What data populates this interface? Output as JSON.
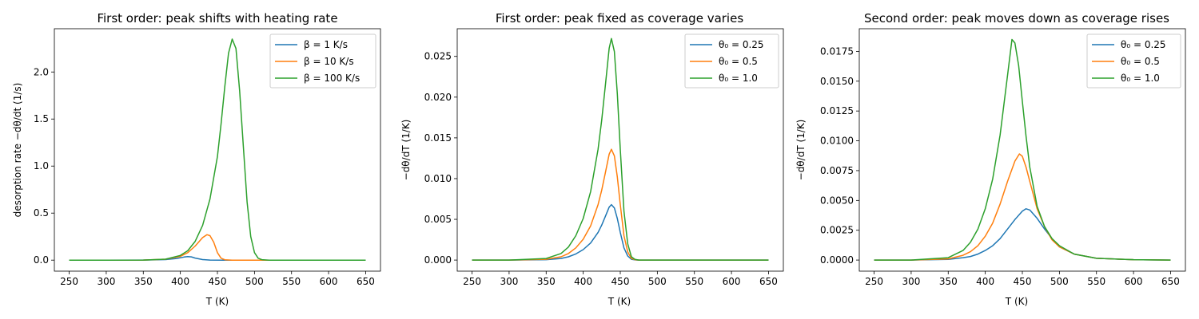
{
  "colors": {
    "blue": "#1f77b4",
    "orange": "#ff7f0e",
    "green": "#2ca02c"
  },
  "chart_data": [
    {
      "type": "line",
      "title": "First order: peak shifts with heating rate",
      "xlabel": "T (K)",
      "ylabel": "desorption rate −dθ/dt (1/s)",
      "xlim": [
        230,
        670
      ],
      "ylim": [
        -0.117,
        2.46
      ],
      "xticks": [
        250,
        300,
        350,
        400,
        450,
        500,
        550,
        600,
        650
      ],
      "yticks": [
        "0.0",
        "0.5",
        "1.0",
        "1.5",
        "2.0"
      ],
      "grid": false,
      "legend_position": "upper right",
      "series": [
        {
          "name": "β = 1 K/s",
          "color": "#1f77b4",
          "x": [
            250,
            300,
            350,
            380,
            395,
            405,
            410,
            415,
            420,
            430,
            440,
            460,
            500,
            650
          ],
          "y": [
            0,
            0,
            0.0005,
            0.006,
            0.018,
            0.033,
            0.038,
            0.035,
            0.022,
            0.006,
            0.001,
            0,
            0,
            0
          ]
        },
        {
          "name": "β = 10 K/s",
          "color": "#ff7f0e",
          "x": [
            250,
            300,
            350,
            380,
            400,
            410,
            420,
            430,
            436,
            440,
            445,
            450,
            455,
            460,
            470,
            500,
            650
          ],
          "y": [
            0,
            0,
            0.001,
            0.01,
            0.04,
            0.08,
            0.15,
            0.24,
            0.27,
            0.26,
            0.19,
            0.08,
            0.02,
            0.004,
            0,
            0,
            0
          ]
        },
        {
          "name": "β = 100 K/s",
          "color": "#2ca02c",
          "x": [
            250,
            300,
            350,
            380,
            400,
            410,
            420,
            430,
            440,
            450,
            455,
            460,
            465,
            470,
            475,
            480,
            485,
            490,
            495,
            500,
            505,
            510,
            520,
            650
          ],
          "y": [
            0,
            0,
            0.001,
            0.01,
            0.05,
            0.1,
            0.2,
            0.37,
            0.65,
            1.1,
            1.45,
            1.85,
            2.2,
            2.35,
            2.25,
            1.8,
            1.2,
            0.62,
            0.25,
            0.08,
            0.02,
            0.005,
            0,
            0
          ]
        }
      ]
    },
    {
      "type": "line",
      "title": "First order: peak fixed as coverage varies",
      "xlabel": "T (K)",
      "ylabel": "−dθ/dT (1/K)",
      "xlim": [
        230,
        670
      ],
      "ylim": [
        -0.00136,
        0.0284
      ],
      "xticks": [
        250,
        300,
        350,
        400,
        450,
        500,
        550,
        600,
        650
      ],
      "yticks": [
        "0.000",
        "0.005",
        "0.010",
        "0.015",
        "0.020",
        "0.025"
      ],
      "grid": false,
      "legend_position": "upper right",
      "series": [
        {
          "name": "θ₀ = 0.25",
          "color": "#1f77b4",
          "x": [
            250,
            300,
            350,
            370,
            380,
            390,
            400,
            410,
            420,
            425,
            430,
            435,
            438,
            442,
            446,
            450,
            455,
            460,
            465,
            470,
            475,
            480,
            500,
            650
          ],
          "y": [
            0,
            0,
            5e-05,
            0.0002,
            0.0004,
            0.00075,
            0.00128,
            0.0021,
            0.0034,
            0.0043,
            0.0054,
            0.0065,
            0.0068,
            0.0064,
            0.0051,
            0.0034,
            0.0015,
            0.0005,
            0.0001,
            2e-05,
            0,
            0,
            0,
            0
          ]
        },
        {
          "name": "θ₀ = 0.5",
          "color": "#ff7f0e",
          "x": [
            250,
            300,
            350,
            370,
            380,
            390,
            400,
            410,
            420,
            425,
            430,
            435,
            438,
            442,
            446,
            450,
            455,
            460,
            465,
            470,
            475,
            480,
            500,
            650
          ],
          "y": [
            0,
            0,
            0.0001,
            0.0004,
            0.0008,
            0.0015,
            0.00256,
            0.0042,
            0.0068,
            0.0086,
            0.0108,
            0.013,
            0.0136,
            0.0128,
            0.0102,
            0.0068,
            0.003,
            0.001,
            0.0002,
            4e-05,
            0,
            0,
            0,
            0
          ]
        },
        {
          "name": "θ₀ = 1.0",
          "color": "#2ca02c",
          "x": [
            250,
            300,
            350,
            370,
            380,
            390,
            400,
            410,
            420,
            425,
            430,
            435,
            438,
            442,
            446,
            450,
            455,
            460,
            465,
            470,
            475,
            480,
            500,
            650
          ],
          "y": [
            0,
            0,
            0.0002,
            0.0008,
            0.0016,
            0.003,
            0.0051,
            0.0084,
            0.0136,
            0.0172,
            0.0216,
            0.026,
            0.0272,
            0.0256,
            0.0204,
            0.0136,
            0.006,
            0.002,
            0.0004,
            8e-05,
            0,
            0,
            0,
            0
          ]
        }
      ]
    },
    {
      "type": "line",
      "title": "Second order: peak moves down as coverage rises",
      "xlabel": "T (K)",
      "ylabel": "−dθ/dT (1/K)",
      "xlim": [
        230,
        670
      ],
      "ylim": [
        -0.00093,
        0.0194
      ],
      "xticks": [
        250,
        300,
        350,
        400,
        450,
        500,
        550,
        600,
        650
      ],
      "yticks": [
        "0.0000",
        "0.0025",
        "0.0050",
        "0.0075",
        "0.0100",
        "0.0125",
        "0.0150",
        "0.0175"
      ],
      "grid": false,
      "legend_position": "upper right",
      "series": [
        {
          "name": "θ₀ = 0.25",
          "color": "#1f77b4",
          "x": [
            250,
            300,
            350,
            370,
            380,
            390,
            400,
            410,
            420,
            430,
            440,
            450,
            455,
            460,
            470,
            480,
            490,
            500,
            520,
            550,
            600,
            650
          ],
          "y": [
            0,
            0,
            5e-05,
            0.0002,
            0.0003,
            0.0005,
            0.0008,
            0.0012,
            0.0018,
            0.0026,
            0.0034,
            0.0041,
            0.0043,
            0.0042,
            0.0035,
            0.0026,
            0.0018,
            0.0011,
            0.0005,
            0.00015,
            3e-05,
            0
          ]
        },
        {
          "name": "θ₀ = 0.5",
          "color": "#ff7f0e",
          "x": [
            250,
            300,
            350,
            370,
            380,
            390,
            400,
            410,
            420,
            430,
            440,
            446,
            450,
            455,
            460,
            470,
            480,
            490,
            500,
            520,
            550,
            600,
            650
          ],
          "y": [
            0,
            0,
            0.0001,
            0.0004,
            0.0007,
            0.0012,
            0.002,
            0.0031,
            0.0047,
            0.0066,
            0.0083,
            0.0089,
            0.0087,
            0.0078,
            0.0066,
            0.0043,
            0.0028,
            0.0017,
            0.0011,
            0.0005,
            0.00015,
            3e-05,
            0
          ]
        },
        {
          "name": "θ₀ = 1.0",
          "color": "#2ca02c",
          "x": [
            250,
            300,
            350,
            370,
            380,
            390,
            400,
            410,
            420,
            430,
            436,
            440,
            445,
            450,
            455,
            460,
            470,
            480,
            490,
            500,
            520,
            550,
            600,
            650
          ],
          "y": [
            0,
            0,
            0.0002,
            0.0008,
            0.0015,
            0.0026,
            0.0043,
            0.0068,
            0.0105,
            0.0155,
            0.0185,
            0.0182,
            0.0163,
            0.0133,
            0.0104,
            0.0078,
            0.0045,
            0.0028,
            0.0018,
            0.0012,
            0.0005,
            0.00015,
            3e-05,
            0
          ]
        }
      ]
    }
  ]
}
